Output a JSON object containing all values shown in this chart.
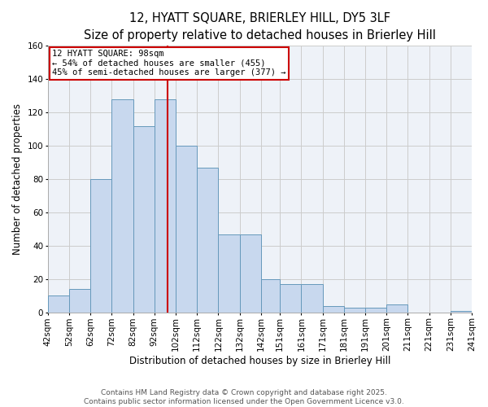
{
  "title_line1": "12, HYATT SQUARE, BRIERLEY HILL, DY5 3LF",
  "title_line2": "Size of property relative to detached houses in Brierley Hill",
  "xlabel": "Distribution of detached houses by size in Brierley Hill",
  "ylabel": "Number of detached properties",
  "bar_values": [
    10,
    14,
    80,
    128,
    112,
    128,
    100,
    87,
    47,
    47,
    20,
    17,
    17,
    4,
    3,
    3,
    5,
    0,
    0,
    1
  ],
  "bin_edges": [
    42,
    52,
    62,
    72,
    82,
    92,
    102,
    112,
    122,
    132,
    142,
    151,
    161,
    171,
    181,
    191,
    201,
    211,
    221,
    231,
    241
  ],
  "bin_labels": [
    "42sqm",
    "52sqm",
    "62sqm",
    "72sqm",
    "82sqm",
    "92sqm",
    "102sqm",
    "112sqm",
    "122sqm",
    "132sqm",
    "142sqm",
    "151sqm",
    "161sqm",
    "171sqm",
    "181sqm",
    "191sqm",
    "201sqm",
    "211sqm",
    "221sqm",
    "231sqm",
    "241sqm"
  ],
  "property_size": 98,
  "property_line_color": "#cc0000",
  "bar_face_color": "#c8d8ee",
  "bar_edge_color": "#6699bb",
  "annotation_box_color": "#cc0000",
  "annotation_text_line1": "12 HYATT SQUARE: 98sqm",
  "annotation_text_line2": "← 54% of detached houses are smaller (455)",
  "annotation_text_line3": "45% of semi-detached houses are larger (377) →",
  "grid_color": "#cccccc",
  "background_color": "#eef2f8",
  "ylim": [
    0,
    160
  ],
  "yticks": [
    0,
    20,
    40,
    60,
    80,
    100,
    120,
    140,
    160
  ],
  "footer_line1": "Contains HM Land Registry data © Crown copyright and database right 2025.",
  "footer_line2": "Contains public sector information licensed under the Open Government Licence v3.0.",
  "title_fontsize": 10.5,
  "axis_label_fontsize": 8.5,
  "tick_fontsize": 7.5,
  "annotation_fontsize": 7.5,
  "footer_fontsize": 6.5
}
